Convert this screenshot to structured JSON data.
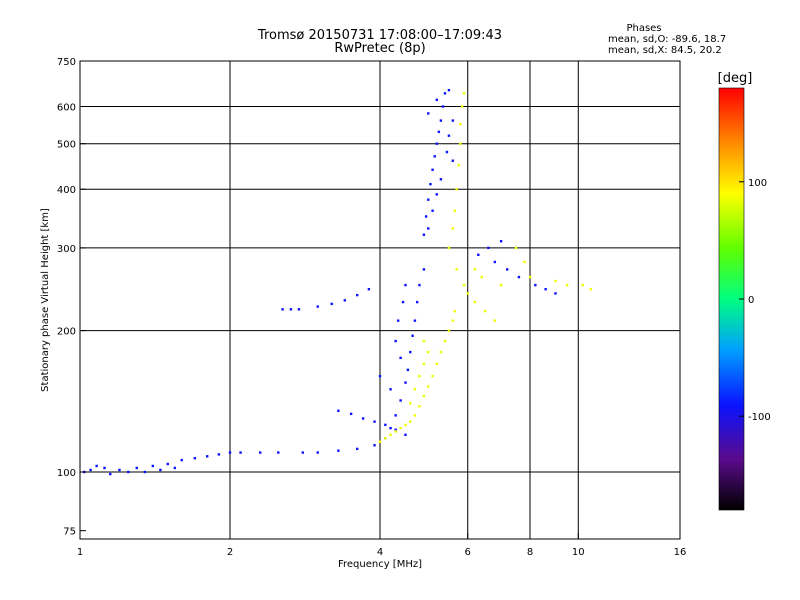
{
  "header": {
    "title_line1": "Tromsø 20150731 17:08:00–17:09:43",
    "title_line2": "RwPretec (8p)"
  },
  "phases": {
    "title": "Phases",
    "line_o": "mean, sd,O: -89.6, 18.7",
    "line_x": "mean, sd,X:  84.5, 20.2"
  },
  "colorbar": {
    "unit": "[deg]",
    "ticks": [
      {
        "value": 100,
        "label": "100"
      },
      {
        "value": 0,
        "label": "0"
      },
      {
        "value": -100,
        "label": "-100"
      }
    ],
    "range": [
      -180,
      180
    ]
  },
  "chart_data": {
    "type": "scatter",
    "title": "Tromsø 20150731 17:08:00–17:09:43",
    "subtitle": "RwPretec (8p)",
    "xlabel": "Frequency [MHz]",
    "ylabel": "Stationary phase Virtual Height [km]",
    "xscale": "log",
    "yscale": "log",
    "xlim": [
      1,
      16
    ],
    "ylim": [
      72,
      750
    ],
    "x_ticks": [
      1,
      2,
      4,
      6,
      8,
      10,
      16
    ],
    "y_ticks": [
      75,
      100,
      200,
      300,
      400,
      500,
      600,
      750
    ],
    "x_gridlines": [
      2,
      4,
      6,
      8,
      10
    ],
    "y_gridlines": [
      100,
      200,
      300,
      400,
      500,
      600
    ],
    "series": [
      {
        "name": "O",
        "color_value_approx": -90,
        "points": [
          [
            1.02,
            100
          ],
          [
            1.05,
            101
          ],
          [
            1.08,
            103
          ],
          [
            1.12,
            102
          ],
          [
            1.15,
            99
          ],
          [
            1.2,
            101
          ],
          [
            1.25,
            100
          ],
          [
            1.3,
            102
          ],
          [
            1.35,
            100
          ],
          [
            1.4,
            103
          ],
          [
            1.45,
            101
          ],
          [
            1.5,
            104
          ],
          [
            1.55,
            102
          ],
          [
            1.6,
            106
          ],
          [
            1.7,
            107
          ],
          [
            1.8,
            108
          ],
          [
            1.9,
            109
          ],
          [
            2.0,
            110
          ],
          [
            2.1,
            110
          ],
          [
            2.3,
            110
          ],
          [
            2.5,
            110
          ],
          [
            2.8,
            110
          ],
          [
            3.0,
            110
          ],
          [
            3.3,
            111
          ],
          [
            3.6,
            112
          ],
          [
            3.9,
            114
          ],
          [
            4.1,
            118
          ],
          [
            4.2,
            124
          ],
          [
            4.3,
            132
          ],
          [
            4.4,
            142
          ],
          [
            4.5,
            155
          ],
          [
            4.55,
            165
          ],
          [
            4.6,
            180
          ],
          [
            4.65,
            195
          ],
          [
            4.7,
            210
          ],
          [
            4.75,
            230
          ],
          [
            4.8,
            250
          ],
          [
            4.9,
            270
          ],
          [
            4.5,
            120
          ],
          [
            4.3,
            123
          ],
          [
            4.1,
            126
          ],
          [
            3.9,
            128
          ],
          [
            3.7,
            130
          ],
          [
            3.5,
            133
          ],
          [
            3.3,
            135
          ],
          [
            4.2,
            150
          ],
          [
            4.0,
            160
          ],
          [
            4.4,
            175
          ],
          [
            4.3,
            190
          ],
          [
            4.35,
            210
          ],
          [
            4.45,
            230
          ],
          [
            4.5,
            250
          ],
          [
            2.55,
            222
          ],
          [
            2.65,
            222
          ],
          [
            2.75,
            222
          ],
          [
            3.0,
            225
          ],
          [
            3.2,
            228
          ],
          [
            3.4,
            232
          ],
          [
            3.6,
            238
          ],
          [
            3.8,
            245
          ],
          [
            4.9,
            320
          ],
          [
            4.95,
            350
          ],
          [
            5.0,
            380
          ],
          [
            5.05,
            410
          ],
          [
            5.1,
            440
          ],
          [
            5.15,
            470
          ],
          [
            5.2,
            500
          ],
          [
            5.25,
            530
          ],
          [
            5.3,
            560
          ],
          [
            5.35,
            600
          ],
          [
            5.4,
            640
          ],
          [
            5.5,
            650
          ],
          [
            5.2,
            620
          ],
          [
            5.0,
            580
          ],
          [
            5.6,
            560
          ],
          [
            5.5,
            520
          ],
          [
            5.45,
            480
          ],
          [
            5.6,
            460
          ],
          [
            5.3,
            420
          ],
          [
            5.2,
            390
          ],
          [
            5.1,
            360
          ],
          [
            5.0,
            330
          ],
          [
            6.3,
            290
          ],
          [
            6.8,
            280
          ],
          [
            7.2,
            270
          ],
          [
            7.6,
            260
          ],
          [
            8.2,
            250
          ],
          [
            8.6,
            245
          ],
          [
            9.0,
            240
          ],
          [
            6.6,
            300
          ],
          [
            7.0,
            310
          ]
        ]
      },
      {
        "name": "X",
        "color_value_approx": 85,
        "points": [
          [
            4.0,
            116
          ],
          [
            4.1,
            118
          ],
          [
            4.2,
            120
          ],
          [
            4.3,
            122
          ],
          [
            4.4,
            124
          ],
          [
            4.5,
            126
          ],
          [
            4.6,
            128
          ],
          [
            4.7,
            132
          ],
          [
            4.8,
            138
          ],
          [
            4.9,
            145
          ],
          [
            5.0,
            152
          ],
          [
            5.1,
            160
          ],
          [
            5.2,
            170
          ],
          [
            5.3,
            180
          ],
          [
            5.4,
            190
          ],
          [
            5.5,
            200
          ],
          [
            5.6,
            210
          ],
          [
            5.65,
            220
          ],
          [
            4.6,
            140
          ],
          [
            4.7,
            150
          ],
          [
            4.8,
            160
          ],
          [
            4.9,
            170
          ],
          [
            5.0,
            180
          ],
          [
            4.9,
            190
          ],
          [
            5.5,
            300
          ],
          [
            5.6,
            330
          ],
          [
            5.65,
            360
          ],
          [
            5.7,
            400
          ],
          [
            5.75,
            450
          ],
          [
            5.8,
            500
          ],
          [
            5.8,
            550
          ],
          [
            5.85,
            600
          ],
          [
            5.9,
            640
          ],
          [
            5.7,
            270
          ],
          [
            5.9,
            250
          ],
          [
            6.0,
            240
          ],
          [
            6.2,
            230
          ],
          [
            6.5,
            220
          ],
          [
            6.8,
            210
          ],
          [
            7.5,
            300
          ],
          [
            7.8,
            280
          ],
          [
            8.0,
            260
          ],
          [
            9.0,
            255
          ],
          [
            9.5,
            250
          ],
          [
            10.2,
            250
          ],
          [
            10.6,
            245
          ],
          [
            6.2,
            270
          ],
          [
            6.4,
            260
          ],
          [
            7.0,
            250
          ]
        ]
      }
    ],
    "grid": true
  }
}
